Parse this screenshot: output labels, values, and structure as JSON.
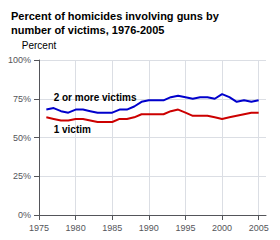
{
  "chart_data": {
    "type": "line",
    "title": "Percent of homicides involving guns by\nnumber of victims, 1976-2005",
    "ylabel": "Percent",
    "x": [
      1976,
      1977,
      1978,
      1979,
      1980,
      1981,
      1982,
      1983,
      1984,
      1985,
      1986,
      1987,
      1988,
      1989,
      1990,
      1991,
      1992,
      1993,
      1994,
      1995,
      1996,
      1997,
      1998,
      1999,
      2000,
      2001,
      2002,
      2003,
      2004,
      2005
    ],
    "series": [
      {
        "name": "2 or more victims",
        "color": "#0000cc",
        "values": [
          68,
          69,
          67,
          66,
          68,
          68,
          67,
          66,
          66,
          66,
          68,
          68,
          70,
          73,
          74,
          74,
          74,
          76,
          77,
          76,
          75,
          76,
          76,
          75,
          78,
          76,
          73,
          74,
          73,
          74
        ]
      },
      {
        "name": "1 victim",
        "color": "#cc0000",
        "values": [
          63,
          62,
          61,
          61,
          62,
          62,
          61,
          60,
          60,
          60,
          62,
          62,
          63,
          65,
          65,
          65,
          65,
          67,
          68,
          66,
          64,
          64,
          64,
          63,
          62,
          63,
          64,
          65,
          66,
          66
        ]
      }
    ],
    "xlim": [
      1975,
      2006
    ],
    "xticks": [
      1975,
      1980,
      1985,
      1990,
      1995,
      2000,
      2005
    ],
    "ylim": [
      0,
      100
    ],
    "yticks": [
      {
        "value": 0,
        "label": "0%"
      },
      {
        "value": 25,
        "label": "25%"
      },
      {
        "value": 50,
        "label": "50%"
      },
      {
        "value": 75,
        "label": "75%"
      },
      {
        "value": 100,
        "label": "100%"
      }
    ],
    "grid": true
  }
}
